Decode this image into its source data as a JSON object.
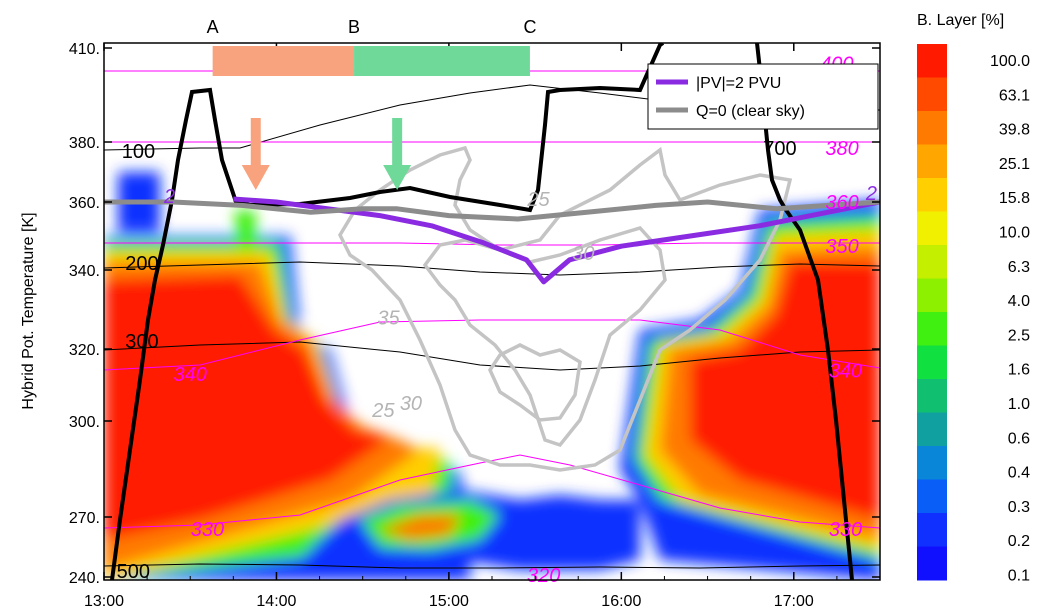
{
  "chart_data": {
    "type": "heatmap",
    "ylabel": "Hybrid Pot. Temperature [K]",
    "colorbar_title": "B. Layer [%]",
    "x_ticks": [
      "13:00",
      "14:00",
      "15:00",
      "16:00",
      "17:00"
    ],
    "x_tick_hours": [
      13,
      14,
      15,
      16,
      17
    ],
    "xlim": [
      13.0,
      17.5
    ],
    "y_ticks": [
      "240.",
      "270.",
      "300.",
      "320.",
      "340.",
      "360.",
      "380.",
      "410."
    ],
    "y_tick_values": [
      240,
      270,
      300,
      320,
      340,
      360,
      380,
      410
    ],
    "colorbar_labels": [
      "100.0",
      "63.1",
      "39.8",
      "25.1",
      "15.8",
      "10.0",
      "6.3",
      "4.0",
      "2.5",
      "1.6",
      "1.0",
      "0.6",
      "0.4",
      "0.3",
      "0.2",
      "0.1"
    ],
    "colorbar_colors": [
      "#ff1a00",
      "#ff4a00",
      "#ff7a00",
      "#ffa600",
      "#ffcf00",
      "#f0f000",
      "#c4f000",
      "#8cf000",
      "#40f010",
      "#10e040",
      "#10c070",
      "#10a0a0",
      "#0a86d8",
      "#0a5ef8",
      "#1030ff",
      "#1010ff"
    ],
    "legend": [
      {
        "label": "|PV|=2 PVU",
        "color": "#8a2be2"
      },
      {
        "label": "Q=0 (clear sky)",
        "color": "#8c8c8c"
      }
    ],
    "segments": [
      {
        "label": "A",
        "hour": 13.63
      },
      {
        "label": "B",
        "hour": 14.45
      },
      {
        "label": "C",
        "hour": 15.47
      }
    ],
    "segment_bars": [
      {
        "from": 13.63,
        "to": 14.45,
        "color": "#f9a37e"
      },
      {
        "from": 14.45,
        "to": 15.47,
        "color": "#6fd99a"
      }
    ],
    "arrows": [
      {
        "hour": 13.88,
        "color": "#f9a37e"
      },
      {
        "hour": 14.7,
        "color": "#6fd99a"
      }
    ],
    "contour_labels": [
      {
        "text": "100",
        "hour": 13.2,
        "theta": 377,
        "color": "#000000"
      },
      {
        "text": "200",
        "hour": 13.22,
        "theta": 342,
        "color": "#000000"
      },
      {
        "text": "300",
        "hour": 13.22,
        "theta": 322,
        "color": "#000000"
      },
      {
        "text": "500",
        "hour": 13.17,
        "theta": 243,
        "color": "#000000"
      },
      {
        "text": "400",
        "hour": 17.25,
        "theta": 405,
        "color": "#ff00ff"
      },
      {
        "text": "380",
        "hour": 17.28,
        "theta": 378,
        "color": "#ff00ff"
      },
      {
        "text": "700",
        "hour": 16.92,
        "theta": 378,
        "color": "#000000"
      },
      {
        "text": "360",
        "hour": 17.28,
        "theta": 360,
        "color": "#ff00ff"
      },
      {
        "text": "350",
        "hour": 17.28,
        "theta": 347,
        "color": "#ff00ff"
      },
      {
        "text": "340",
        "hour": 13.5,
        "theta": 313,
        "color": "#ff00ff"
      },
      {
        "text": "340",
        "hour": 17.3,
        "theta": 314,
        "color": "#ff00ff"
      },
      {
        "text": "330",
        "hour": 13.6,
        "theta": 264,
        "color": "#ff00ff"
      },
      {
        "text": "330",
        "hour": 17.3,
        "theta": 264,
        "color": "#ff00ff"
      },
      {
        "text": "320",
        "hour": 15.55,
        "theta": 241,
        "color": "#ff00ff"
      },
      {
        "text": "25",
        "hour": 15.52,
        "theta": 361,
        "color": "#b4b4b4"
      },
      {
        "text": "30",
        "hour": 15.78,
        "theta": 345,
        "color": "#b4b4b4"
      },
      {
        "text": "35",
        "hour": 14.65,
        "theta": 328,
        "color": "#b4b4b4"
      },
      {
        "text": "30",
        "hour": 14.78,
        "theta": 305,
        "color": "#b4b4b4"
      },
      {
        "text": "25",
        "hour": 14.62,
        "theta": 303,
        "color": "#b4b4b4"
      },
      {
        "text": "2",
        "hour": 13.38,
        "theta": 362,
        "color": "#8a2be2"
      },
      {
        "text": "2",
        "hour": 17.45,
        "theta": 363,
        "color": "#8a2be2"
      }
    ],
    "series": [
      {
        "name": "|PV|=2 PVU",
        "color": "#8a2be2",
        "x": [
          13.75,
          14.0,
          14.3,
          14.6,
          14.9,
          15.2,
          15.45,
          15.55,
          15.7,
          16.0,
          16.4,
          16.8,
          17.1,
          17.5
        ],
        "y": [
          361,
          360,
          358,
          356,
          353,
          348,
          343,
          337,
          343,
          347,
          350,
          353,
          356,
          360
        ]
      },
      {
        "name": "Q=0 (clear sky)",
        "color": "#8c8c8c",
        "x": [
          13.0,
          13.4,
          13.8,
          14.2,
          14.5,
          14.7,
          15.0,
          15.4,
          15.8,
          16.2,
          16.5,
          16.9,
          17.2,
          17.5
        ],
        "y": [
          360,
          360,
          359,
          357,
          358,
          358,
          356,
          355,
          357,
          359,
          360,
          358,
          359,
          360
        ]
      }
    ]
  }
}
